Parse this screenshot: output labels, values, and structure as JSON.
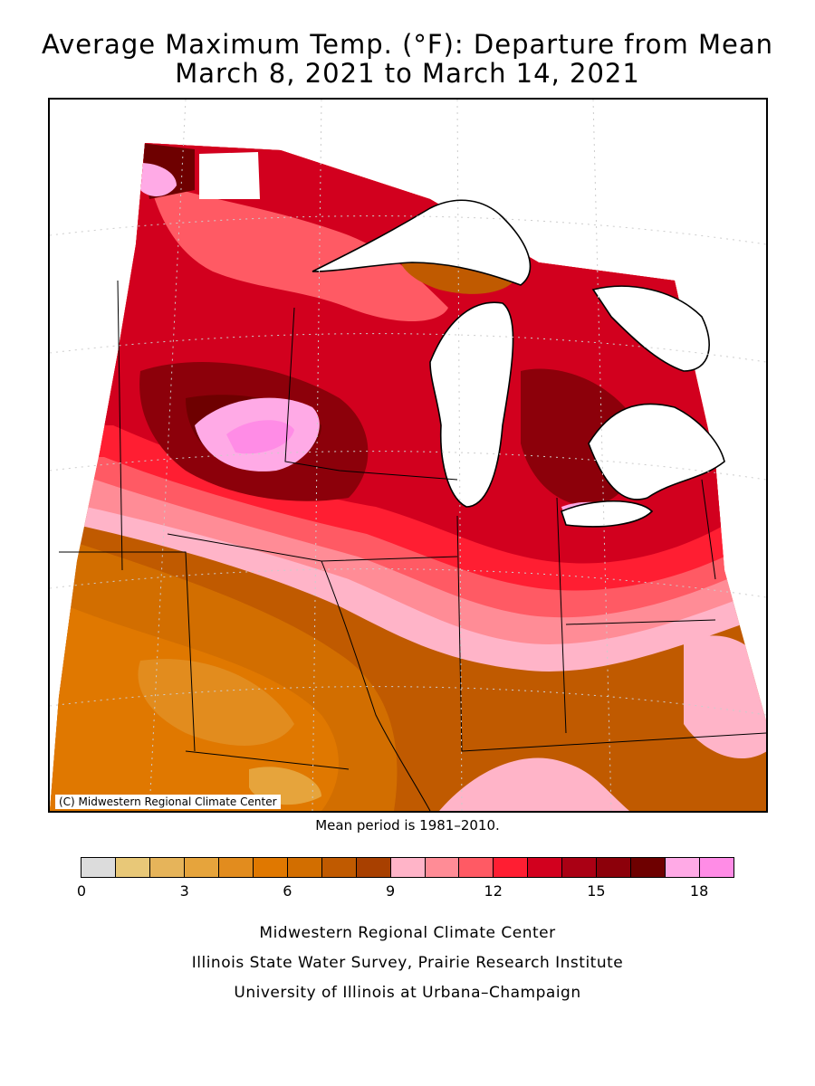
{
  "title": {
    "line1": "Average Maximum Temp. (°F): Departure from Mean",
    "line2": "March 8, 2021 to March 14, 2021"
  },
  "map": {
    "copyright": "(C) Midwestern Regional Climate Center"
  },
  "mean_period": "Mean period is 1981–2010.",
  "legend": {
    "colors": [
      "#dcdcdc",
      "#e8c878",
      "#e6b45a",
      "#e6a43c",
      "#e28c1e",
      "#e07800",
      "#d26e00",
      "#c05a00",
      "#a84000",
      "#ffb4c8",
      "#ff8c96",
      "#ff5a64",
      "#ff1e32",
      "#d2001e",
      "#aa0014",
      "#8c000a",
      "#6e0000",
      "#ffaae6",
      "#ff8ce6"
    ],
    "tick_labels": [
      "0",
      "3",
      "6",
      "9",
      "12",
      "15",
      "18"
    ]
  },
  "credits": {
    "line1": "Midwestern Regional Climate Center",
    "line2": "Illinois State Water Survey, Prairie Research Institute",
    "line3": "University of Illinois at Urbana–Champaign"
  }
}
